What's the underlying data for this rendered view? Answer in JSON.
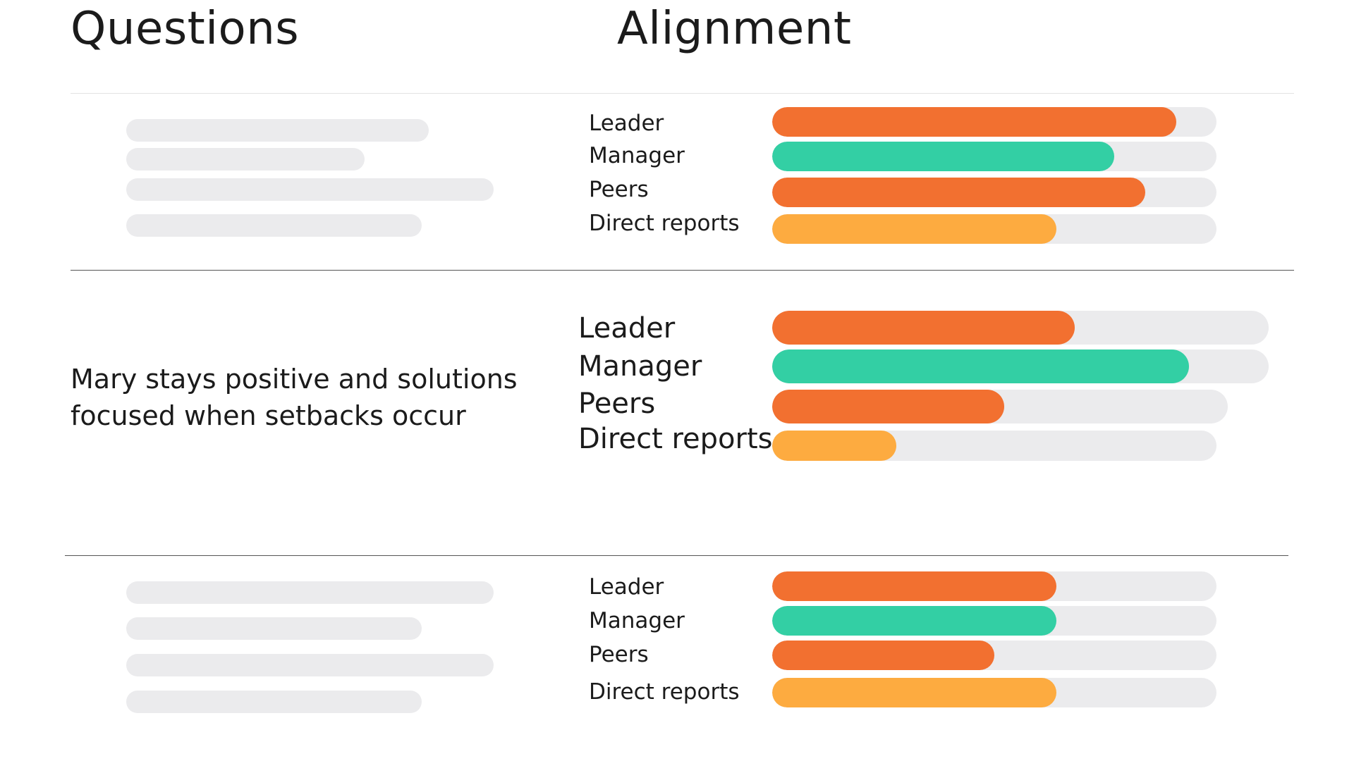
{
  "headers": {
    "questions": "Questions",
    "alignment": "Alignment"
  },
  "colors": {
    "leader": "#f27030",
    "manager": "#33cfa4",
    "peers": "#f27030",
    "direct_reports": "#fdab40",
    "track": "#ebebed",
    "placeholder": "#ebebed",
    "divider_light": "#e3e3e3",
    "divider_dark": "#555555"
  },
  "question": "Mary stays positive and solutions focused when setbacks occur",
  "chart_data": {
    "type": "bar",
    "orientation": "horizontal",
    "value_unit": "fraction of track",
    "categories": [
      "Leader",
      "Manager",
      "Peers",
      "Direct reports"
    ],
    "groups": [
      {
        "question": "",
        "values": [
          0.91,
          0.77,
          0.84,
          0.64
        ]
      },
      {
        "question": "Mary stays positive and solutions focused when setbacks occur",
        "values": [
          0.61,
          0.84,
          0.51,
          0.28
        ]
      },
      {
        "question": "",
        "values": [
          0.64,
          0.64,
          0.5,
          0.64
        ]
      }
    ]
  }
}
